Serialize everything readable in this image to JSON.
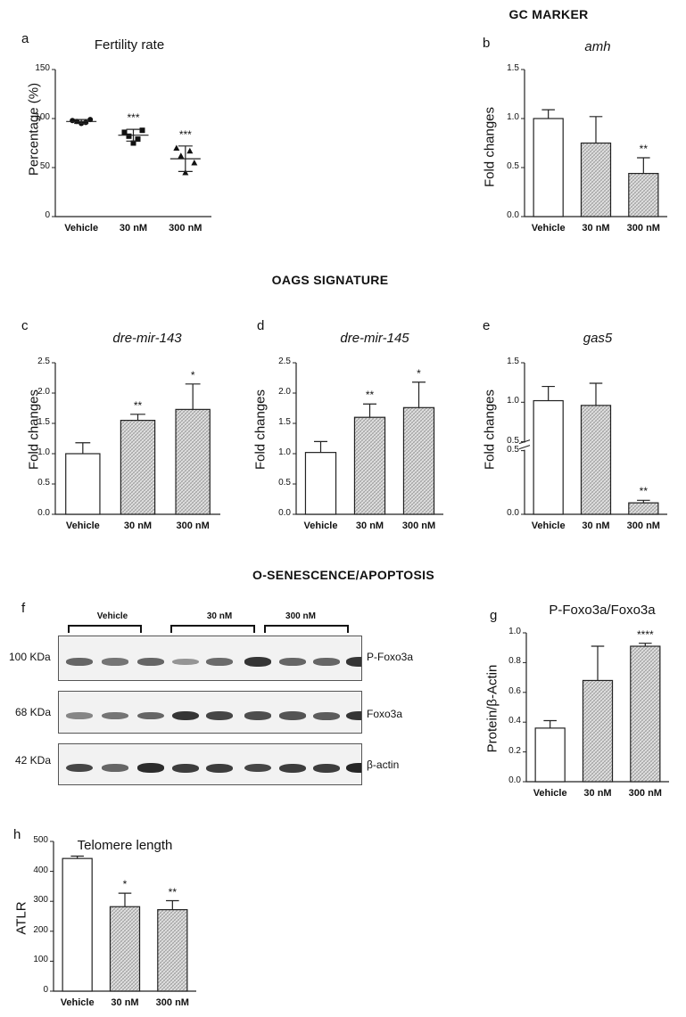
{
  "sections": {
    "gc_marker": "GC MARKER",
    "oags_signature": "OAGS SIGNATURE",
    "o_senescence": "O-SENESCENCE/APOPTOSIS"
  },
  "panel_labels": {
    "a": "a",
    "b": "b",
    "c": "c",
    "d": "d",
    "e": "e",
    "f": "f",
    "g": "g",
    "h": "h"
  },
  "western_blot": {
    "groups": [
      "Vehicle",
      "30 nM",
      "300 nM"
    ],
    "rows": [
      {
        "mw": "100 KDa",
        "protein": "P-Foxo3a",
        "intensity": [
          0.55,
          0.45,
          0.55,
          0.25,
          0.5,
          0.85,
          0.55,
          0.55,
          0.85
        ]
      },
      {
        "mw": "68 KDa",
        "protein": "Foxo3a",
        "intensity": [
          0.35,
          0.45,
          0.55,
          0.85,
          0.75,
          0.7,
          0.65,
          0.6,
          0.85
        ]
      },
      {
        "mw": "42 KDa",
        "protein": "β-actin",
        "intensity": [
          0.75,
          0.55,
          0.9,
          0.8,
          0.8,
          0.75,
          0.8,
          0.8,
          0.95
        ]
      }
    ]
  },
  "colors": {
    "bar_outline": "#222222",
    "hatch": "#9a9a9a",
    "band": "#1d1d1d"
  },
  "chart_data": [
    {
      "id": "a",
      "type": "scatter",
      "title": "Fertility rate",
      "ylabel": "Percentage (%)",
      "categories": [
        "Vehicle",
        "30 nM",
        "300 nM"
      ],
      "ylim": [
        0,
        150
      ],
      "yticks": [
        "0",
        "50",
        "100",
        "150"
      ],
      "points": [
        [
          98,
          97,
          95,
          96,
          99
        ],
        [
          86,
          82,
          75,
          79,
          88
        ],
        [
          70,
          62,
          45,
          67,
          55
        ]
      ],
      "mean": [
        97,
        83,
        59
      ],
      "error": [
        2,
        6,
        13
      ],
      "markers": [
        "circle",
        "square",
        "triangle"
      ],
      "significance": [
        "",
        "***",
        "***"
      ]
    },
    {
      "id": "b",
      "type": "bar",
      "title": "amh",
      "title_italic": true,
      "ylabel": "Fold changes",
      "categories": [
        "Vehicle",
        "30 nM",
        "300 nM"
      ],
      "values": [
        1.0,
        0.75,
        0.44
      ],
      "error": [
        0.09,
        0.27,
        0.16
      ],
      "ylim": [
        0,
        1.5
      ],
      "yticks": [
        "0.0",
        "0.5",
        "1.0",
        "1.5"
      ],
      "fills": [
        "white",
        "hatch",
        "hatch"
      ],
      "significance": [
        "",
        "",
        "**"
      ]
    },
    {
      "id": "c",
      "type": "bar",
      "title": "dre-mir-143",
      "title_italic": true,
      "ylabel": "Fold changes",
      "categories": [
        "Vehicle",
        "30 nM",
        "300 nM"
      ],
      "values": [
        1.0,
        1.55,
        1.73
      ],
      "error": [
        0.18,
        0.1,
        0.42
      ],
      "ylim": [
        0,
        2.5
      ],
      "yticks": [
        "0.0",
        "0.5",
        "1.0",
        "1.5",
        "2.0",
        "2.5"
      ],
      "fills": [
        "white",
        "hatch",
        "hatch"
      ],
      "significance": [
        "",
        "**",
        "*"
      ]
    },
    {
      "id": "d",
      "type": "bar",
      "title": "dre-mir-145",
      "title_italic": true,
      "ylabel": "Fold changes",
      "categories": [
        "Vehicle",
        "30 nM",
        "300 nM"
      ],
      "values": [
        1.02,
        1.6,
        1.76
      ],
      "error": [
        0.18,
        0.22,
        0.42
      ],
      "ylim": [
        0,
        2.5
      ],
      "yticks": [
        "0.0",
        "0.5",
        "1.0",
        "1.5",
        "2.0",
        "2.5"
      ],
      "fills": [
        "white",
        "hatch",
        "hatch"
      ],
      "significance": [
        "",
        "**",
        "*"
      ]
    },
    {
      "id": "e",
      "type": "bar",
      "title": "gas5",
      "title_italic": true,
      "ylabel": "Fold changes",
      "categories": [
        "Vehicle",
        "30 nM",
        "300 nM"
      ],
      "values": [
        1.02,
        0.96,
        0.09
      ],
      "error": [
        0.18,
        0.28,
        0.02
      ],
      "ylim": [
        0,
        1.5
      ],
      "axis_break": true,
      "yticks": [
        "0.0",
        "0.5",
        "0.5",
        "1.0",
        "1.5"
      ],
      "fills": [
        "white",
        "hatch",
        "hatch"
      ],
      "significance": [
        "",
        "",
        "**"
      ]
    },
    {
      "id": "g",
      "type": "bar",
      "title": "P-Foxo3a/Foxo3a",
      "title_italic": false,
      "ylabel": "Protein/β-Actin",
      "categories": [
        "Vehicle",
        "30 nM",
        "300 nM"
      ],
      "values": [
        0.36,
        0.68,
        0.91
      ],
      "error": [
        0.05,
        0.23,
        0.02
      ],
      "ylim": [
        0,
        1.0
      ],
      "yticks": [
        "0.0",
        "0.2",
        "0.4",
        "0.6",
        "0.8",
        "1.0"
      ],
      "fills": [
        "white",
        "hatch",
        "hatch"
      ],
      "significance": [
        "",
        "",
        "****"
      ]
    },
    {
      "id": "h",
      "type": "bar",
      "title": "Telomere length",
      "title_italic": false,
      "ylabel": "ATLR",
      "categories": [
        "Vehicle",
        "30 nM",
        "300 nM"
      ],
      "values": [
        443,
        282,
        272
      ],
      "error": [
        8,
        45,
        30
      ],
      "ylim": [
        0,
        500
      ],
      "yticks": [
        "0",
        "100",
        "200",
        "300",
        "400",
        "500"
      ],
      "fills": [
        "white",
        "hatch",
        "hatch"
      ],
      "significance": [
        "",
        "*",
        "**"
      ]
    }
  ]
}
